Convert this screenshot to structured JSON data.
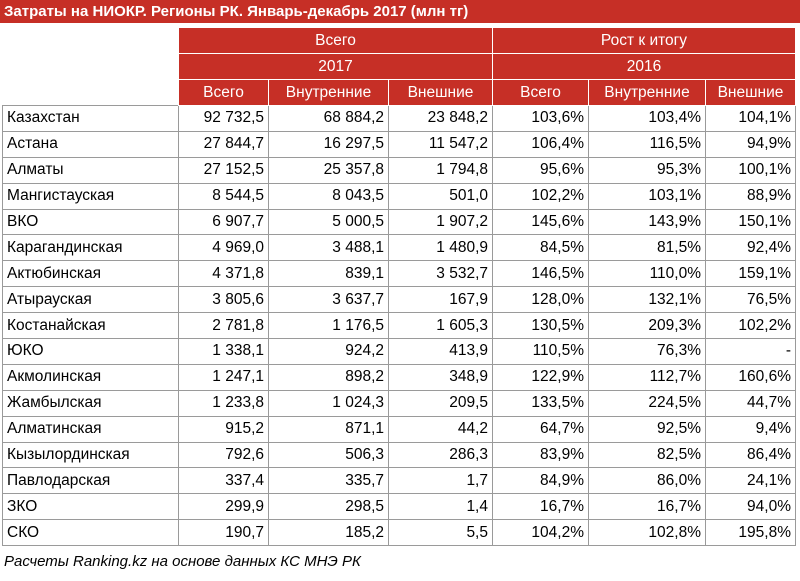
{
  "title": "Затраты на НИОКР. Регионы РК. Январь-декабрь 2017 (млн тг)",
  "header": {
    "groups": [
      "Всего",
      "Рост к итогу"
    ],
    "years": [
      "2017",
      "2016"
    ],
    "columns": [
      "Всего",
      "Внутренние",
      "Внешние",
      "Всего",
      "Внутренние",
      "Внешние"
    ]
  },
  "table": {
    "rows": [
      [
        "Казахстан",
        "92 732,5",
        "68 884,2",
        "23 848,2",
        "103,6%",
        "103,4%",
        "104,1%"
      ],
      [
        "Астана",
        "27 844,7",
        "16 297,5",
        "11 547,2",
        "106,4%",
        "116,5%",
        "94,9%"
      ],
      [
        "Алматы",
        "27 152,5",
        "25 357,8",
        "1 794,8",
        "95,6%",
        "95,3%",
        "100,1%"
      ],
      [
        "Мангистауская",
        "8 544,5",
        "8 043,5",
        "501,0",
        "102,2%",
        "103,1%",
        "88,9%"
      ],
      [
        "ВКО",
        "6 907,7",
        "5 000,5",
        "1 907,2",
        "145,6%",
        "143,9%",
        "150,1%"
      ],
      [
        "Карагандинская",
        "4 969,0",
        "3 488,1",
        "1 480,9",
        "84,5%",
        "81,5%",
        "92,4%"
      ],
      [
        "Актюбинская",
        "4 371,8",
        "839,1",
        "3 532,7",
        "146,5%",
        "110,0%",
        "159,1%"
      ],
      [
        "Атырауская",
        "3 805,6",
        "3 637,7",
        "167,9",
        "128,0%",
        "132,1%",
        "76,5%"
      ],
      [
        "Костанайская",
        "2 781,8",
        "1 176,5",
        "1 605,3",
        "130,5%",
        "209,3%",
        "102,2%"
      ],
      [
        "ЮКО",
        "1 338,1",
        "924,2",
        "413,9",
        "110,5%",
        "76,3%",
        "-"
      ],
      [
        "Акмолинская",
        "1 247,1",
        "898,2",
        "348,9",
        "122,9%",
        "112,7%",
        "160,6%"
      ],
      [
        "Жамбылская",
        "1 233,8",
        "1 024,3",
        "209,5",
        "133,5%",
        "224,5%",
        "44,7%"
      ],
      [
        "Алматинская",
        "915,2",
        "871,1",
        "44,2",
        "64,7%",
        "92,5%",
        "9,4%"
      ],
      [
        "Кызылординская",
        "792,6",
        "506,3",
        "286,3",
        "83,9%",
        "82,5%",
        "86,4%"
      ],
      [
        "Павлодарская",
        "337,4",
        "335,7",
        "1,7",
        "84,9%",
        "86,0%",
        "24,1%"
      ],
      [
        "ЗКО",
        "299,9",
        "298,5",
        "1,4",
        "16,7%",
        "16,7%",
        "94,0%"
      ],
      [
        "СКО",
        "190,7",
        "185,2",
        "5,5",
        "104,2%",
        "102,8%",
        "195,8%"
      ]
    ]
  },
  "footer": "Расчеты Ranking.kz на основе данных КС МНЭ РК"
}
